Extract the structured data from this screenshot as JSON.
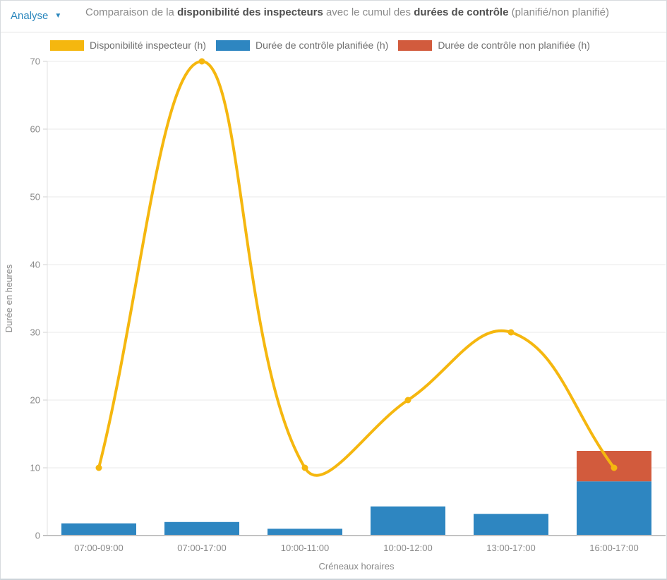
{
  "header": {
    "analyse_label": "Analyse",
    "caret_icon": "▼",
    "title_parts": [
      {
        "text": "Comparaison de la ",
        "bold": false
      },
      {
        "text": "disponibilité des inspecteurs",
        "bold": true
      },
      {
        "text": " avec le cumul des ",
        "bold": false
      },
      {
        "text": "durées de contrôle",
        "bold": true
      },
      {
        "text": " (planifié/non planifié)",
        "bold": false
      }
    ]
  },
  "colors": {
    "analyse_blue": "#2b87bd",
    "line_yellow": "#F5B70F",
    "bar_blue": "#2E86C1",
    "bar_orange": "#D25B3D",
    "grid": "#e9e9e9",
    "baseline": "#c2c2c2",
    "axis_text": "#8a8a8a"
  },
  "chart_data": {
    "type": "combo-bar-line",
    "categories": [
      "07:00-09:00",
      "07:00-17:00",
      "10:00-11:00",
      "10:00-12:00",
      "13:00-17:00",
      "16:00-17:00"
    ],
    "series": [
      {
        "name": "Disponibilité inspecteur (h)",
        "type": "line",
        "color": "#F5B70F",
        "values": [
          10,
          70,
          10,
          20,
          30,
          10
        ]
      },
      {
        "name": "Durée de contrôle planifiée (h)",
        "type": "bar",
        "color": "#2E86C1",
        "values": [
          1.8,
          2,
          1,
          4.3,
          3.2,
          8
        ]
      },
      {
        "name": "Durée de contrôle non planifiée (h)",
        "type": "bar",
        "color": "#D25B3D",
        "values": [
          0,
          0,
          0,
          0,
          0,
          4.5
        ]
      }
    ],
    "stacked_bars": true,
    "xlabel": "Créneaux horaires",
    "ylabel": "Durée en heures",
    "ylim": [
      0,
      70
    ],
    "yticks": [
      0,
      10,
      20,
      30,
      40,
      50,
      60,
      70
    ],
    "grid": true,
    "legend_position": "top",
    "line_tension": 0.4
  }
}
